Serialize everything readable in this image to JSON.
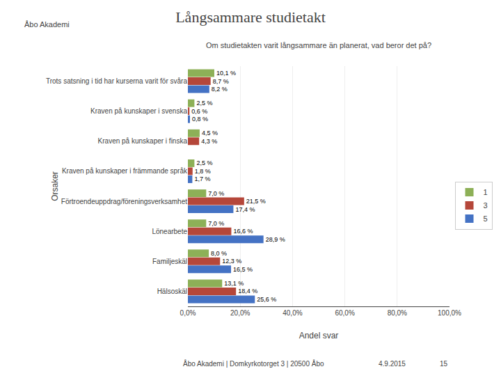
{
  "chart_data": {
    "type": "bar",
    "orientation": "horizontal",
    "title": "Långsammare studietakt",
    "subtitle": "Om studietakten varit långsammare än planerat, vad beror det på?",
    "xlabel": "Andel svar",
    "ylabel": "Orsaker",
    "categories": [
      "Trots satsning i tid har kurserna varit för svåra",
      "Kraven på kunskaper i svenska",
      "Kraven på kunskaper i finska",
      "Kraven på kunskaper i främmande språk",
      "Förtroendeuppdrag/föreningsverksamhet",
      "Lönearbete",
      "Familjeskäl",
      "Hälsoskäl"
    ],
    "series": [
      {
        "name": "1",
        "color": "#8db057",
        "values": [
          10.1,
          2.5,
          4.5,
          2.5,
          7.0,
          7.0,
          8.0,
          13.1
        ],
        "value_labels": [
          "10,1 %",
          "2,5 %",
          "4,5 %",
          "2,5 %",
          "7,0 %",
          "7,0 %",
          "8,0 %",
          "13,1 %"
        ]
      },
      {
        "name": "3",
        "color": "#b5473a",
        "values": [
          8.7,
          0.6,
          4.3,
          1.8,
          21.5,
          16.6,
          12.3,
          18.4
        ],
        "value_labels": [
          "8,7 %",
          "0,6 %",
          "4,3 %",
          "1,8 %",
          "21,5 %",
          "16,6 %",
          "12,3 %",
          "18,4 %"
        ]
      },
      {
        "name": "5",
        "color": "#4472c4",
        "values": [
          8.2,
          0.8,
          0.0,
          1.7,
          17.4,
          28.9,
          16.5,
          25.6
        ],
        "value_labels": [
          "8,2 %",
          "0,8 %",
          null,
          "1,7 %",
          "17,4 %",
          "28,9 %",
          "16,5 %",
          "25,6 %"
        ]
      }
    ],
    "xlim": [
      0,
      100
    ],
    "xticks": [
      {
        "value": 0,
        "label": "0,0%"
      },
      {
        "value": 20,
        "label": "20,0%"
      },
      {
        "value": 40,
        "label": "40,0%"
      },
      {
        "value": 60,
        "label": "60,0%"
      },
      {
        "value": 80,
        "label": "80,0%"
      },
      {
        "value": 100,
        "label": "100,0%"
      }
    ],
    "grid": true,
    "legend": "right",
    "data_labels": true,
    "annotations": [
      "Åbo Akademi",
      "Åbo Akademi | Domkyrkotorget 3 | 20500 Åbo",
      "4.9.2015",
      "15"
    ]
  }
}
